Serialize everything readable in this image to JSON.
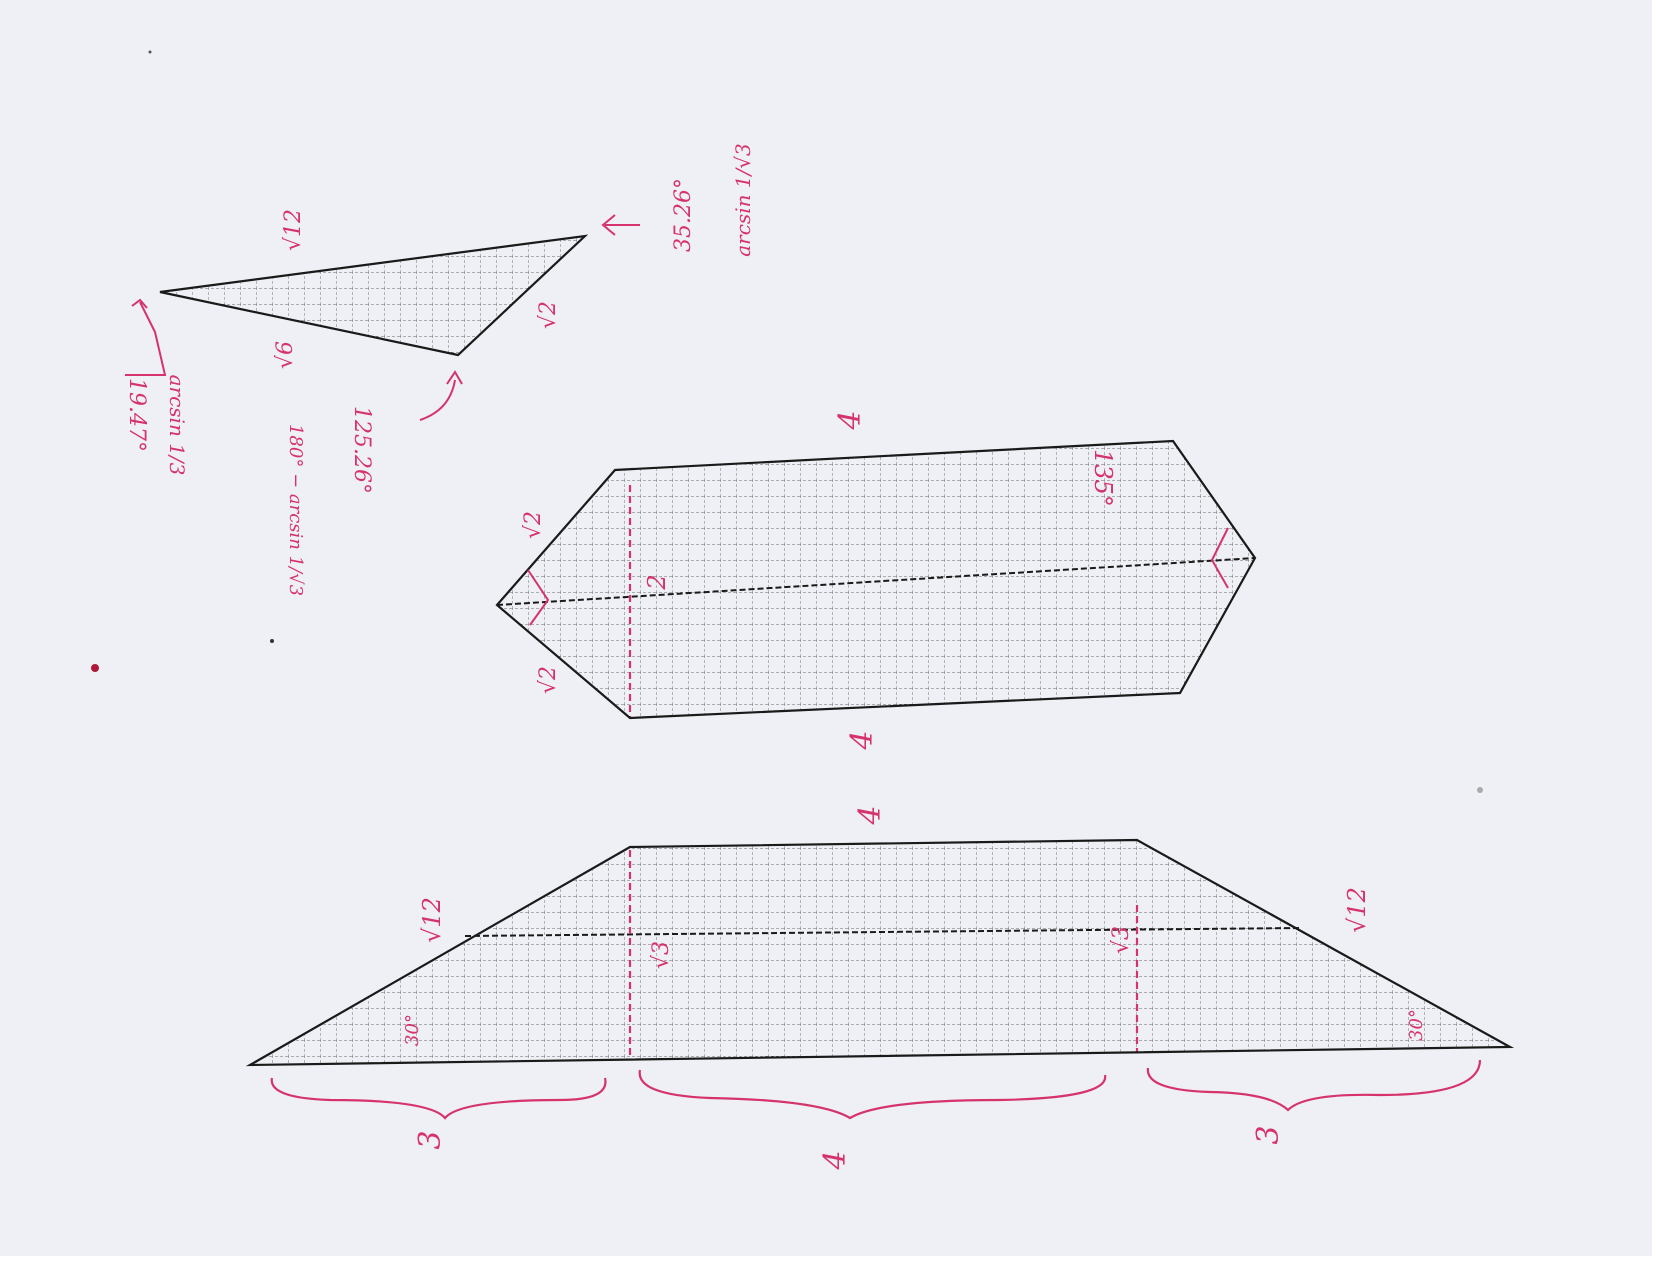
{
  "colors": {
    "paper": "#eef0f5",
    "outline": "#1a1a1a",
    "grid": "#3a3a3a",
    "ink": "#d6336c"
  },
  "triangle": {
    "side_top": "√12",
    "side_left": "√6",
    "side_right": "√2",
    "angle_apex": "19.47°",
    "angle_apex_formula": "arcsin 1/3",
    "angle_bottom": "125.26°",
    "angle_bottom_formula": "180° − arcsin 1/√3",
    "angle_right": "35.26°",
    "angle_right_formula": "arcsin 1/√3"
  },
  "hexagon": {
    "side_top": "4",
    "side_bottom": "4",
    "edge_upper_left": "√2",
    "edge_lower_left": "√2",
    "inner_dim": "2",
    "angle": "135°"
  },
  "trapezoid": {
    "side_top": "4",
    "slant_left": "√12",
    "slant_right": "√12",
    "height_left": "√3",
    "height_right": "√3",
    "angle_left": "30°",
    "angle_right": "30°",
    "base_left": "3",
    "base_middle": "4",
    "base_right": "3"
  }
}
